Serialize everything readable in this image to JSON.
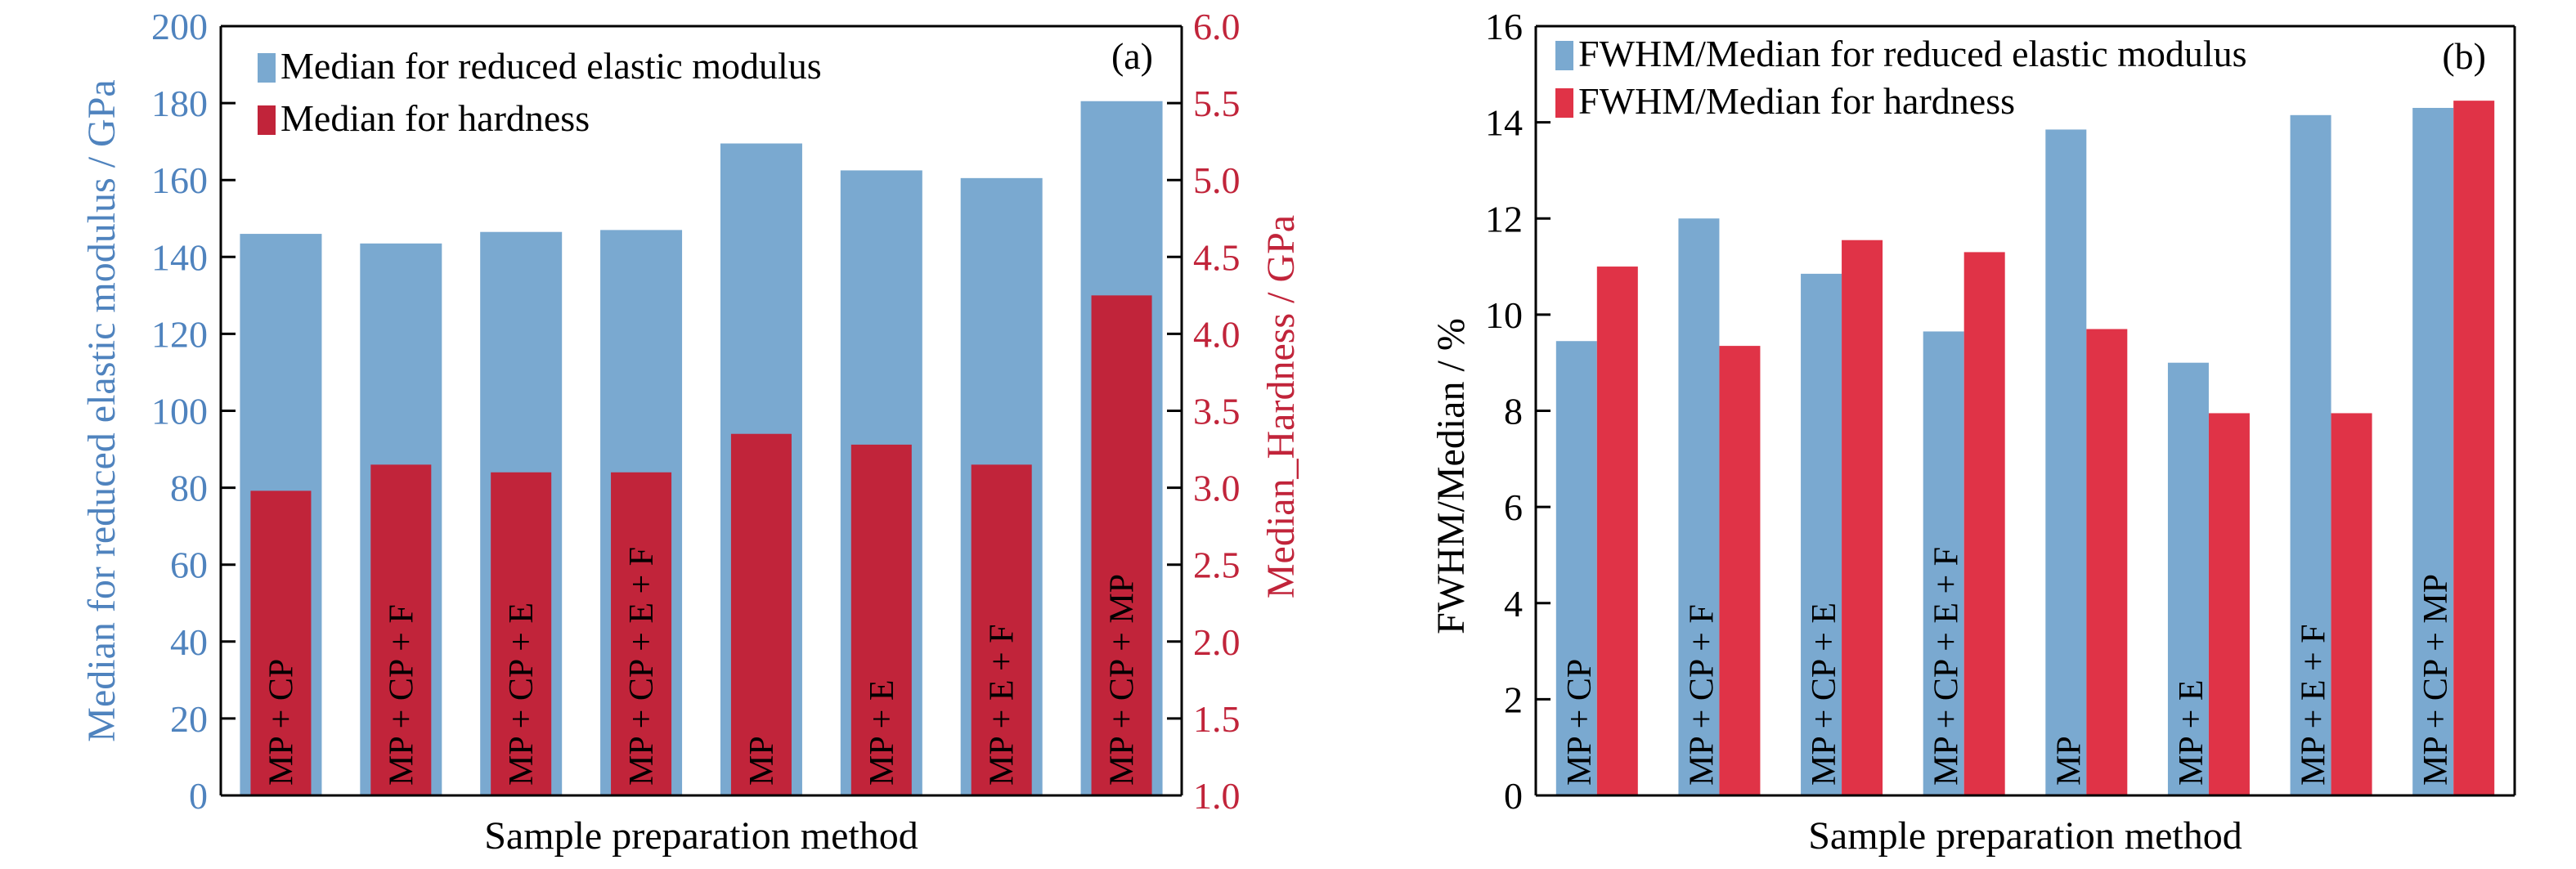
{
  "chart_data": [
    {
      "type": "bar",
      "panel_label": "(a)",
      "xlabel": "Sample preparation method",
      "categories": [
        "MP + CP",
        "MP + CP + F",
        "MP + CP + E",
        "MP + CP + E + F",
        "MP",
        "MP + E",
        "MP + E + F",
        "MP + CP + MP"
      ],
      "ylabel": "Median for reduced elastic modulus / GPa",
      "y2label": "Median_Hardness / GPa",
      "ylim": [
        0,
        200
      ],
      "y2lim": [
        1.0,
        6.0
      ],
      "yticks": [
        "0",
        "20",
        "40",
        "60",
        "80",
        "100",
        "120",
        "140",
        "160",
        "180",
        "200"
      ],
      "y2ticks": [
        "1.0",
        "1.5",
        "2.0",
        "2.5",
        "3.0",
        "3.5",
        "4.0",
        "4.5",
        "5.0",
        "5.5",
        "6.0"
      ],
      "legend_position": "top-left",
      "grid": false,
      "overlay": true,
      "series": [
        {
          "name": "Median for reduced elastic modulus",
          "axis": "left",
          "color": "#7aa9d0",
          "values": [
            146,
            143.5,
            146.5,
            147,
            169.5,
            162.5,
            160.5,
            180.5
          ]
        },
        {
          "name": "Median for hardness",
          "axis": "right",
          "color": "#c1243a",
          "values": [
            2.98,
            3.15,
            3.1,
            3.1,
            3.35,
            3.28,
            3.15,
            4.25
          ]
        }
      ]
    },
    {
      "type": "bar",
      "panel_label": "(b)",
      "xlabel": "Sample preparation method",
      "categories": [
        "MP + CP",
        "MP + CP + F",
        "MP + CP + E",
        "MP + CP + E + F",
        "MP",
        "MP + E",
        "MP + E + F",
        "MP + CP + MP"
      ],
      "ylabel": "FWHM/Median / %",
      "ylim": [
        0,
        16
      ],
      "yticks": [
        "0",
        "2",
        "4",
        "6",
        "8",
        "10",
        "12",
        "14",
        "16"
      ],
      "legend_position": "top-left",
      "grid": false,
      "overlay": false,
      "series": [
        {
          "name": "FWHM/Median for reduced elastic modulus",
          "color": "#7aa9d0",
          "values": [
            9.45,
            12.0,
            10.85,
            9.65,
            13.85,
            9.0,
            14.15,
            14.3
          ]
        },
        {
          "name": "FWHM/Median for hardness",
          "color": "#e03347",
          "values": [
            11.0,
            9.35,
            11.55,
            11.3,
            9.7,
            7.95,
            7.95,
            14.45
          ]
        }
      ]
    }
  ],
  "colors": {
    "left_axis": "#4f83be",
    "right_axis": "#c1243a"
  }
}
